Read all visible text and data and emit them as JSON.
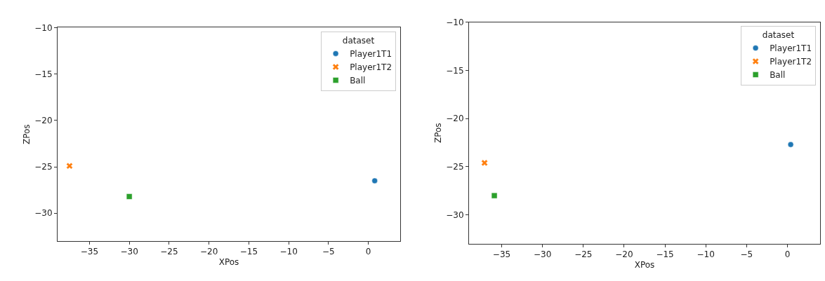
{
  "chart_data": [
    {
      "type": "scatter",
      "xlabel": "XPos",
      "ylabel": "ZPos",
      "legend_title": "dataset",
      "legend": "top right",
      "xlim": [
        -39,
        4
      ],
      "xticks": [
        -35,
        -30,
        -25,
        -20,
        -15,
        -10,
        -5,
        0
      ],
      "ylim": [
        -33,
        -10
      ],
      "yticks": [
        -30,
        -25,
        -20,
        -15,
        -10
      ],
      "series": [
        {
          "name": "Player1T1",
          "color": "#1f77b4",
          "marker": "circle",
          "x": [
            0.8
          ],
          "values": [
            -26.5
          ]
        },
        {
          "name": "Player1T2",
          "color": "#ff7f0e",
          "marker": "cross",
          "x": [
            -37.5
          ],
          "values": [
            -24.9
          ]
        },
        {
          "name": "Ball",
          "color": "#2ca02c",
          "marker": "square",
          "x": [
            -30.0
          ],
          "values": [
            -28.2
          ]
        }
      ]
    },
    {
      "type": "scatter",
      "xlabel": "XPos",
      "ylabel": "ZPos",
      "legend_title": "dataset",
      "legend": "top right",
      "xlim": [
        -39,
        4
      ],
      "xticks": [
        -35,
        -30,
        -25,
        -20,
        -15,
        -10,
        -5,
        0
      ],
      "ylim": [
        -33,
        -10
      ],
      "yticks": [
        -30,
        -25,
        -20,
        -15,
        -10
      ],
      "series": [
        {
          "name": "Player1T1",
          "color": "#1f77b4",
          "marker": "circle",
          "x": [
            0.4
          ],
          "values": [
            -22.7
          ]
        },
        {
          "name": "Player1T2",
          "color": "#ff7f0e",
          "marker": "cross",
          "x": [
            -37.1
          ],
          "values": [
            -24.6
          ]
        },
        {
          "name": "Ball",
          "color": "#2ca02c",
          "marker": "square",
          "x": [
            -35.9
          ],
          "values": [
            -28.0
          ]
        }
      ]
    }
  ]
}
